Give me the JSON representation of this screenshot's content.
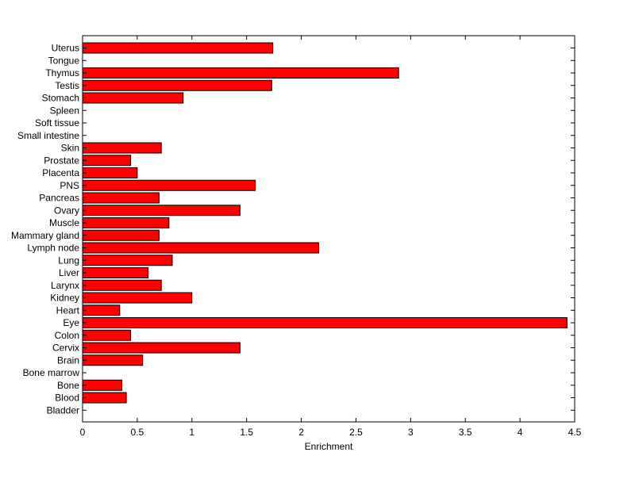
{
  "chart_data": {
    "type": "bar",
    "orientation": "horizontal",
    "categories": [
      "Uterus",
      "Tongue",
      "Thymus",
      "Testis",
      "Stomach",
      "Spleen",
      "Soft tissue",
      "Small intestine",
      "Skin",
      "Prostate",
      "Placenta",
      "PNS",
      "Pancreas",
      "Ovary",
      "Muscle",
      "Mammary gland",
      "Lymph node",
      "Lung",
      "Liver",
      "Larynx",
      "Kidney",
      "Heart",
      "Eye",
      "Colon",
      "Cervix",
      "Brain",
      "Bone marrow",
      "Bone",
      "Blood",
      "Bladder"
    ],
    "values": [
      1.74,
      0,
      2.89,
      1.73,
      0.92,
      0,
      0,
      0,
      0.72,
      0.44,
      0.5,
      1.58,
      0.7,
      1.44,
      0.79,
      0.7,
      2.16,
      0.82,
      0.6,
      0.72,
      1.0,
      0.34,
      4.43,
      0.44,
      1.44,
      0.55,
      0,
      0.36,
      0.4,
      0
    ],
    "xlabel": "Enrichment",
    "ylabel": "",
    "title": "",
    "xlim": [
      0,
      4.5
    ],
    "xticks": [
      0,
      0.5,
      1,
      1.5,
      2,
      2.5,
      3,
      3.5,
      4,
      4.5
    ],
    "xtick_labels": [
      "0",
      "0.5",
      "1",
      "1.5",
      "2",
      "2.5",
      "3",
      "3.5",
      "4",
      "4.5"
    ],
    "grid": false,
    "legend": "none",
    "bar_color": "#ff0000",
    "edge_color": "#000000"
  }
}
